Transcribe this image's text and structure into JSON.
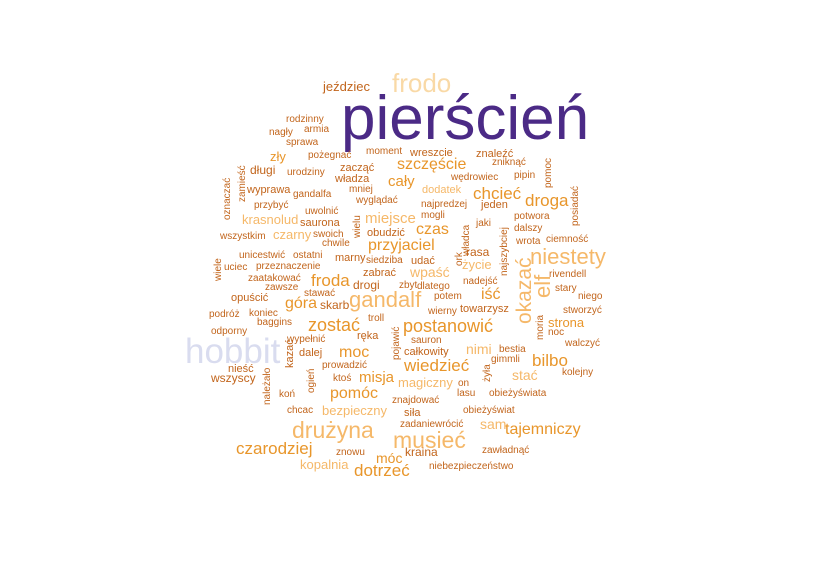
{
  "colors": {
    "deep_purple": "#4b2a86",
    "lavender": "#d9dcef",
    "peach": "#f9d9a6",
    "light_orange": "#f5b869",
    "orange": "#e8962b",
    "dark_orange": "#c2651c"
  },
  "words": [
    {
      "text": "pierścień",
      "color": "deep_purple"
    },
    {
      "text": "frodo",
      "color": "peach"
    },
    {
      "text": "jeździec",
      "color": "dark_orange"
    },
    {
      "text": "hobbit",
      "color": "lavender"
    },
    {
      "text": "gandalf",
      "color": "light_orange"
    },
    {
      "text": "drużyna",
      "color": "light_orange"
    },
    {
      "text": "musieć",
      "color": "light_orange"
    },
    {
      "text": "niestety",
      "color": "light_orange"
    },
    {
      "text": "okazać",
      "color": "light_orange"
    },
    {
      "text": "elf",
      "color": "light_orange"
    },
    {
      "text": "postanowić",
      "color": "orange"
    },
    {
      "text": "przyjaciel",
      "color": "orange"
    },
    {
      "text": "szczęście",
      "color": "orange"
    },
    {
      "text": "czarodziej",
      "color": "orange"
    },
    {
      "text": "tajemniczy",
      "color": "orange"
    },
    {
      "text": "zostać",
      "color": "orange"
    },
    {
      "text": "froda",
      "color": "orange"
    },
    {
      "text": "wiedzieć",
      "color": "orange"
    },
    {
      "text": "moc",
      "color": "orange"
    },
    {
      "text": "misja",
      "color": "orange"
    },
    {
      "text": "pomóc",
      "color": "orange"
    },
    {
      "text": "bilbo",
      "color": "orange"
    },
    {
      "text": "dotrzeć",
      "color": "orange"
    },
    {
      "text": "móc",
      "color": "orange"
    },
    {
      "text": "droga",
      "color": "orange"
    },
    {
      "text": "chcieć",
      "color": "orange"
    },
    {
      "text": "cały",
      "color": "orange"
    },
    {
      "text": "czas",
      "color": "orange"
    },
    {
      "text": "iść",
      "color": "orange"
    },
    {
      "text": "góra",
      "color": "orange"
    },
    {
      "text": "miejsce",
      "color": "light_orange"
    },
    {
      "text": "wpaść",
      "color": "light_orange"
    },
    {
      "text": "życie",
      "color": "light_orange"
    },
    {
      "text": "nimi",
      "color": "light_orange"
    },
    {
      "text": "sam",
      "color": "light_orange"
    },
    {
      "text": "stać",
      "color": "light_orange"
    },
    {
      "text": "strona",
      "color": "orange"
    },
    {
      "text": "magiczny",
      "color": "light_orange"
    },
    {
      "text": "bezpieczny",
      "color": "light_orange"
    },
    {
      "text": "kopalnia",
      "color": "light_orange"
    },
    {
      "text": "kraina",
      "color": "dark_orange"
    },
    {
      "text": "czarny",
      "color": "light_orange"
    },
    {
      "text": "krasnolud",
      "color": "light_orange"
    },
    {
      "text": "rodzinny",
      "color": "dark_orange"
    },
    {
      "text": "nagły",
      "color": "dark_orange"
    },
    {
      "text": "armia",
      "color": "dark_orange"
    },
    {
      "text": "sprawa",
      "color": "dark_orange"
    },
    {
      "text": "pożegnać",
      "color": "dark_orange"
    },
    {
      "text": "moment",
      "color": "dark_orange"
    },
    {
      "text": "wreszcie",
      "color": "dark_orange"
    },
    {
      "text": "znaleźć",
      "color": "dark_orange"
    },
    {
      "text": "zniknąć",
      "color": "dark_orange"
    },
    {
      "text": "pipin",
      "color": "dark_orange"
    },
    {
      "text": "pomoc",
      "color": "dark_orange"
    },
    {
      "text": "posiadać",
      "color": "dark_orange"
    },
    {
      "text": "zły",
      "color": "orange"
    },
    {
      "text": "długi",
      "color": "dark_orange"
    },
    {
      "text": "zacząć",
      "color": "dark_orange"
    },
    {
      "text": "urodziny",
      "color": "dark_orange"
    },
    {
      "text": "władza",
      "color": "dark_orange"
    },
    {
      "text": "wędrowiec",
      "color": "dark_orange"
    },
    {
      "text": "zamieść",
      "color": "dark_orange"
    },
    {
      "text": "oznaczać",
      "color": "dark_orange"
    },
    {
      "text": "wyprawa",
      "color": "dark_orange"
    },
    {
      "text": "gandalfa",
      "color": "dark_orange"
    },
    {
      "text": "mniej",
      "color": "dark_orange"
    },
    {
      "text": "dodatek",
      "color": "light_orange"
    },
    {
      "text": "przybyć",
      "color": "dark_orange"
    },
    {
      "text": "uwolnić",
      "color": "dark_orange"
    },
    {
      "text": "wyglądać",
      "color": "dark_orange"
    },
    {
      "text": "najpredzej",
      "color": "dark_orange"
    },
    {
      "text": "jeden",
      "color": "dark_orange"
    },
    {
      "text": "mogli",
      "color": "dark_orange"
    },
    {
      "text": "sauron",
      "color": "dark_orange"
    },
    {
      "text": "saurona",
      "color": "dark_orange"
    },
    {
      "text": "wielu",
      "color": "dark_orange"
    },
    {
      "text": "potwora",
      "color": "dark_orange"
    },
    {
      "text": "jaki",
      "color": "dark_orange"
    },
    {
      "text": "dalszy",
      "color": "dark_orange"
    },
    {
      "text": "wszystkim",
      "color": "dark_orange"
    },
    {
      "text": "swoich",
      "color": "dark_orange"
    },
    {
      "text": "obudzić",
      "color": "dark_orange"
    },
    {
      "text": "władca",
      "color": "dark_orange"
    },
    {
      "text": "wrota",
      "color": "dark_orange"
    },
    {
      "text": "ciemność",
      "color": "dark_orange"
    },
    {
      "text": "chwile",
      "color": "dark_orange"
    },
    {
      "text": "najszybciej",
      "color": "dark_orange"
    },
    {
      "text": "rasa",
      "color": "dark_orange"
    },
    {
      "text": "ork",
      "color": "dark_orange"
    },
    {
      "text": "unicestwić",
      "color": "dark_orange"
    },
    {
      "text": "ostatni",
      "color": "dark_orange"
    },
    {
      "text": "marny",
      "color": "dark_orange"
    },
    {
      "text": "uciec",
      "color": "dark_orange"
    },
    {
      "text": "przeznaczenie",
      "color": "dark_orange"
    },
    {
      "text": "siedziba",
      "color": "dark_orange"
    },
    {
      "text": "udać",
      "color": "dark_orange"
    },
    {
      "text": "wiele",
      "color": "dark_orange"
    },
    {
      "text": "zabrać",
      "color": "dark_orange"
    },
    {
      "text": "rivendell",
      "color": "dark_orange"
    },
    {
      "text": "zaatakować",
      "color": "dark_orange"
    },
    {
      "text": "nadejść",
      "color": "dark_orange"
    },
    {
      "text": "zawsze",
      "color": "dark_orange"
    },
    {
      "text": "drogi",
      "color": "dark_orange"
    },
    {
      "text": "zbyt",
      "color": "dark_orange"
    },
    {
      "text": "dlatego",
      "color": "dark_orange"
    },
    {
      "text": "stary",
      "color": "dark_orange"
    },
    {
      "text": "opuścić",
      "color": "dark_orange"
    },
    {
      "text": "stawać",
      "color": "dark_orange"
    },
    {
      "text": "skarb",
      "color": "dark_orange"
    },
    {
      "text": "potem",
      "color": "dark_orange"
    },
    {
      "text": "niego",
      "color": "dark_orange"
    },
    {
      "text": "podróż",
      "color": "dark_orange"
    },
    {
      "text": "koniec",
      "color": "dark_orange"
    },
    {
      "text": "wierny",
      "color": "dark_orange"
    },
    {
      "text": "towarzysz",
      "color": "dark_orange"
    },
    {
      "text": "stworzyć",
      "color": "dark_orange"
    },
    {
      "text": "baggins",
      "color": "dark_orange"
    },
    {
      "text": "troll",
      "color": "dark_orange"
    },
    {
      "text": "noc",
      "color": "dark_orange"
    },
    {
      "text": "moria",
      "color": "dark_orange"
    },
    {
      "text": "odporny",
      "color": "dark_orange"
    },
    {
      "text": "pojawić",
      "color": "dark_orange"
    },
    {
      "text": "ręka",
      "color": "dark_orange"
    },
    {
      "text": "walczyć",
      "color": "dark_orange"
    },
    {
      "text": "wypełnić",
      "color": "dark_orange"
    },
    {
      "text": "całkowity",
      "color": "dark_orange"
    },
    {
      "text": "bestia",
      "color": "dark_orange"
    },
    {
      "text": "kazać",
      "color": "dark_orange"
    },
    {
      "text": "dalej",
      "color": "dark_orange"
    },
    {
      "text": "gimmli",
      "color": "dark_orange"
    },
    {
      "text": "nieść",
      "color": "dark_orange"
    },
    {
      "text": "prowadzić",
      "color": "dark_orange"
    },
    {
      "text": "żyła",
      "color": "dark_orange"
    },
    {
      "text": "kolejny",
      "color": "dark_orange"
    },
    {
      "text": "wszyscy",
      "color": "dark_orange"
    },
    {
      "text": "ktoś",
      "color": "dark_orange"
    },
    {
      "text": "ogień",
      "color": "dark_orange"
    },
    {
      "text": "należało",
      "color": "dark_orange"
    },
    {
      "text": "on",
      "color": "dark_orange"
    },
    {
      "text": "koń",
      "color": "dark_orange"
    },
    {
      "text": "znajdować",
      "color": "dark_orange"
    },
    {
      "text": "lasu",
      "color": "dark_orange"
    },
    {
      "text": "obieżyświata",
      "color": "dark_orange"
    },
    {
      "text": "chcac",
      "color": "dark_orange"
    },
    {
      "text": "siła",
      "color": "dark_orange"
    },
    {
      "text": "obieżyświat",
      "color": "dark_orange"
    },
    {
      "text": "zadanie",
      "color": "dark_orange"
    },
    {
      "text": "wrócić",
      "color": "dark_orange"
    },
    {
      "text": "znowu",
      "color": "dark_orange"
    },
    {
      "text": "zawładnąć",
      "color": "dark_orange"
    },
    {
      "text": "niebezpieczeństwo",
      "color": "dark_orange"
    }
  ]
}
